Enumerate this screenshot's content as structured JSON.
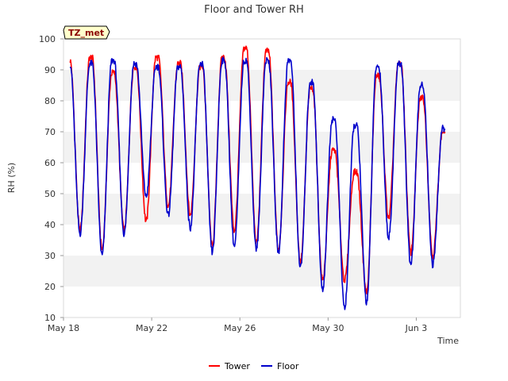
{
  "chart_data": {
    "type": "line",
    "title": "Floor and Tower RH",
    "xlabel": "Time",
    "ylabel": "RH (%)",
    "station_badge": "TZ_met",
    "x_domain_days": [
      0,
      18
    ],
    "x_ticks": [
      {
        "day": 0,
        "label": "May 18"
      },
      {
        "day": 4,
        "label": "May 22"
      },
      {
        "day": 8,
        "label": "May 26"
      },
      {
        "day": 12,
        "label": "May 30"
      },
      {
        "day": 16,
        "label": "Jun 3"
      }
    ],
    "ylim": [
      10,
      100
    ],
    "y_ticks": [
      10,
      20,
      30,
      40,
      50,
      60,
      70,
      80,
      90,
      100
    ],
    "background_bands": [
      [
        20,
        30
      ],
      [
        40,
        50
      ],
      [
        60,
        70
      ],
      [
        80,
        90
      ]
    ],
    "colors": {
      "Tower": "#ff0000",
      "Floor": "#0000cc",
      "band": "#f2f2f2",
      "badge_fill": "#ffffcc"
    },
    "daily_cycle": {
      "Tower": [
        {
          "start_day": 0.3,
          "max": 93,
          "min": 38
        },
        {
          "start_day": 1.3,
          "max": 94,
          "min": 32
        },
        {
          "start_day": 2.3,
          "max": 89,
          "min": 38
        },
        {
          "start_day": 3.3,
          "max": 91,
          "min": 41
        },
        {
          "start_day": 4.3,
          "max": 94,
          "min": 46
        },
        {
          "start_day": 5.3,
          "max": 92,
          "min": 43
        },
        {
          "start_day": 6.3,
          "max": 91,
          "min": 33
        },
        {
          "start_day": 7.3,
          "max": 94,
          "min": 38
        },
        {
          "start_day": 8.3,
          "max": 97,
          "min": 34
        },
        {
          "start_day": 9.3,
          "max": 96,
          "min": 32
        },
        {
          "start_day": 10.3,
          "max": 86,
          "min": 28
        },
        {
          "start_day": 11.3,
          "max": 84,
          "min": 22
        },
        {
          "start_day": 12.3,
          "max": 64,
          "min": 22
        },
        {
          "start_day": 13.3,
          "max": 57,
          "min": 18
        },
        {
          "start_day": 14.3,
          "max": 88,
          "min": 42
        },
        {
          "start_day": 15.3,
          "max": 92,
          "min": 31
        },
        {
          "start_day": 16.3,
          "max": 81,
          "min": 30
        },
        {
          "start_day": 17.3,
          "max": 70,
          "min": 70
        }
      ],
      "Floor": [
        {
          "start_day": 0.3,
          "max": 92,
          "min": 37
        },
        {
          "start_day": 1.3,
          "max": 92,
          "min": 30
        },
        {
          "start_day": 2.3,
          "max": 93,
          "min": 37
        },
        {
          "start_day": 3.3,
          "max": 92,
          "min": 49
        },
        {
          "start_day": 4.3,
          "max": 91,
          "min": 43
        },
        {
          "start_day": 5.3,
          "max": 91,
          "min": 39
        },
        {
          "start_day": 6.3,
          "max": 92,
          "min": 31
        },
        {
          "start_day": 7.3,
          "max": 93,
          "min": 33
        },
        {
          "start_day": 8.3,
          "max": 93,
          "min": 32
        },
        {
          "start_day": 9.3,
          "max": 93,
          "min": 31
        },
        {
          "start_day": 10.3,
          "max": 93,
          "min": 26
        },
        {
          "start_day": 11.3,
          "max": 86,
          "min": 19
        },
        {
          "start_day": 12.3,
          "max": 74,
          "min": 13
        },
        {
          "start_day": 13.3,
          "max": 72,
          "min": 15
        },
        {
          "start_day": 14.3,
          "max": 91,
          "min": 36
        },
        {
          "start_day": 15.3,
          "max": 92,
          "min": 27
        },
        {
          "start_day": 16.3,
          "max": 85,
          "min": 27
        },
        {
          "start_day": 17.3,
          "max": 71,
          "min": 71
        }
      ]
    },
    "series": [
      {
        "name": "Tower",
        "color": "#ff0000"
      },
      {
        "name": "Floor",
        "color": "#0000cc"
      }
    ]
  }
}
